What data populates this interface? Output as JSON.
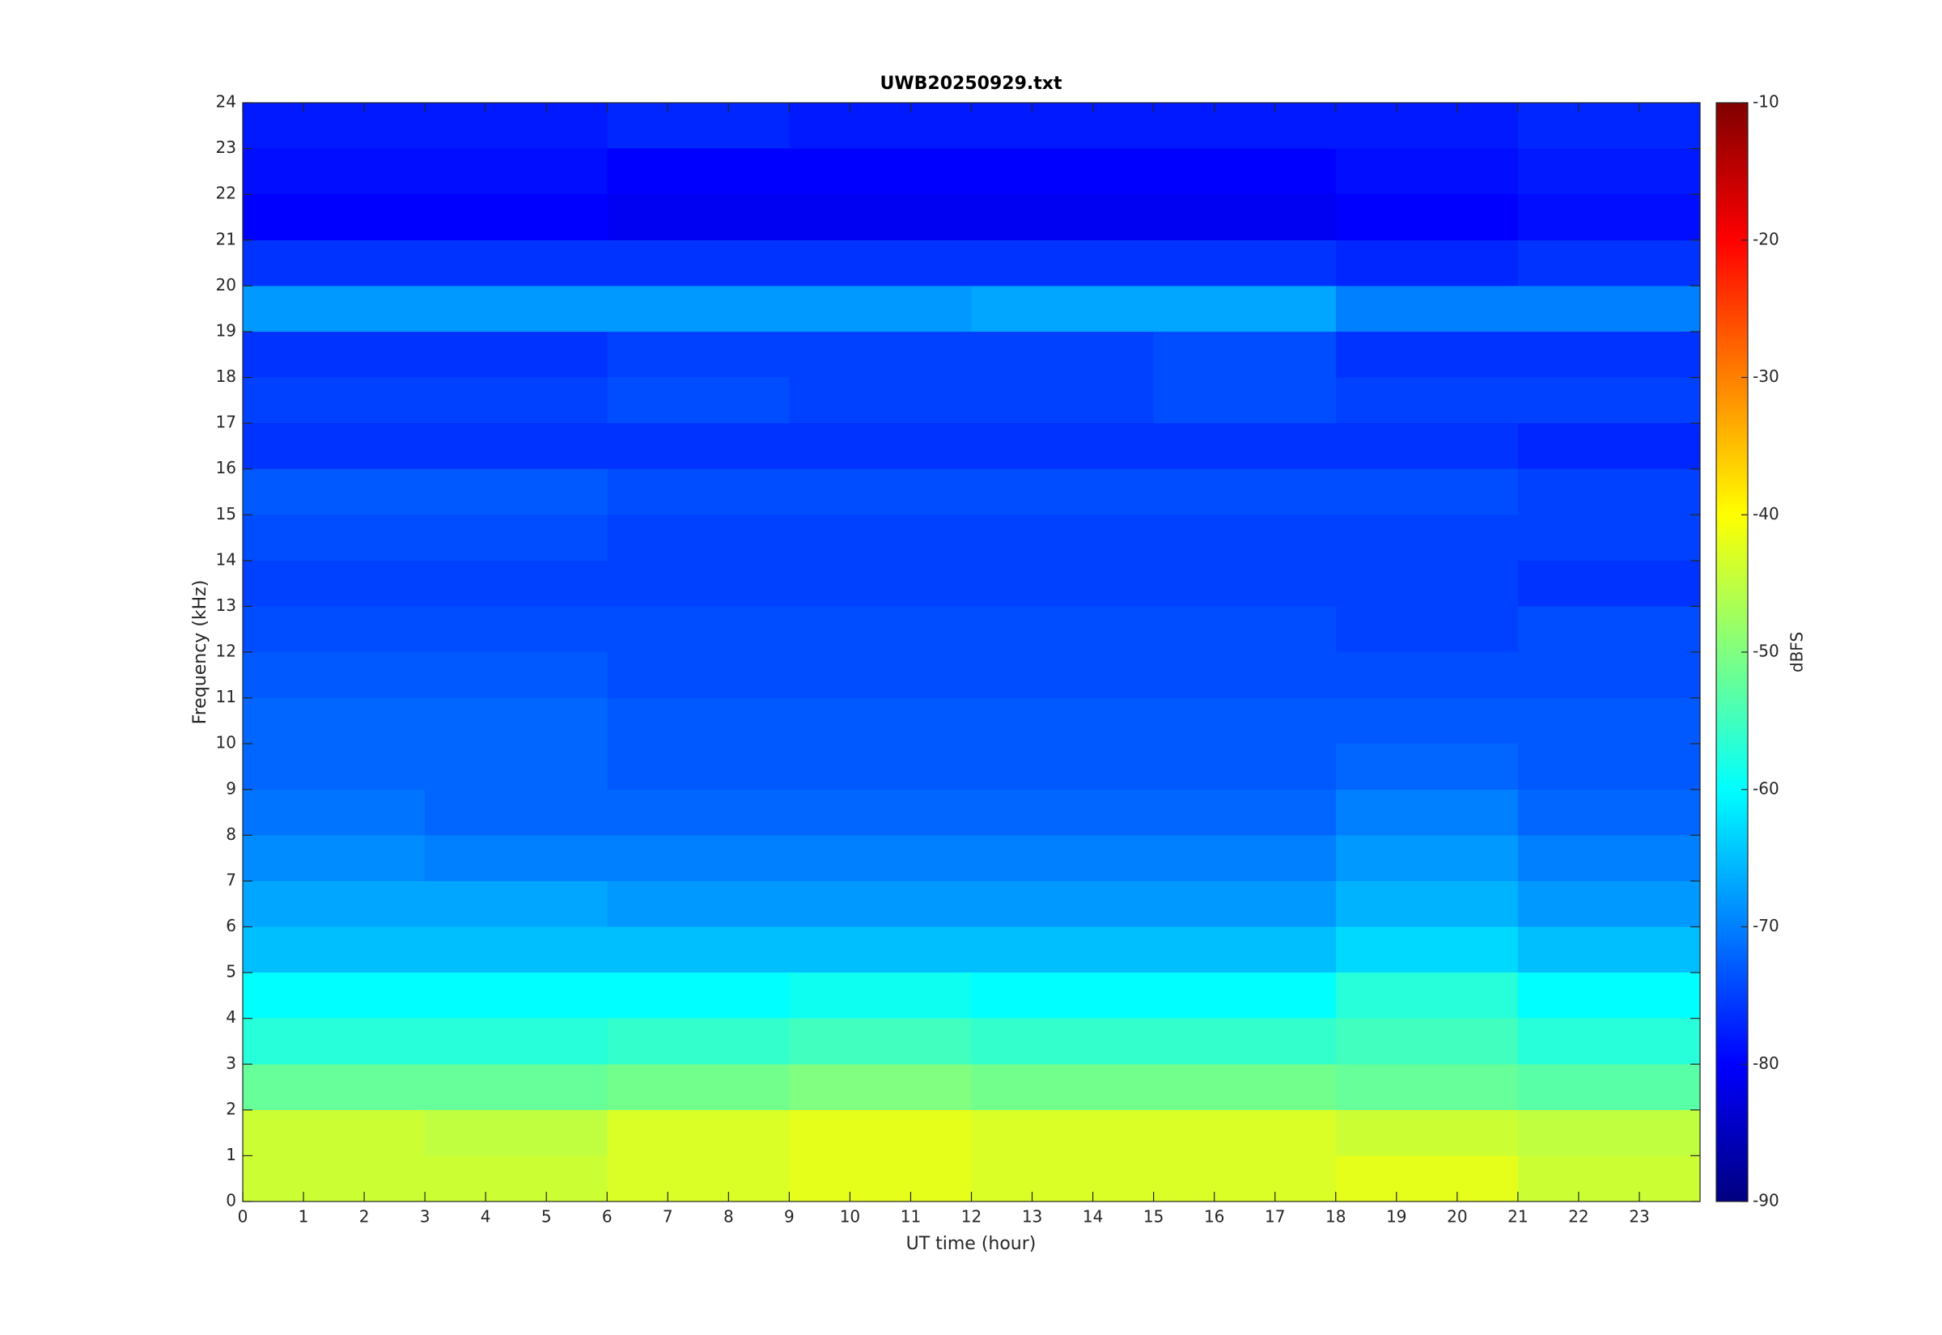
{
  "chart_data": {
    "type": "heatmap",
    "title": "UWB20250929.txt",
    "xlabel": "UT time (hour)",
    "ylabel": "Frequency (kHz)",
    "colorbar_label": "dBFS",
    "colormap": "jet",
    "clim": [
      -90,
      -10
    ],
    "cticks": [
      -90,
      -80,
      -70,
      -60,
      -50,
      -40,
      -30,
      -20,
      -10
    ],
    "xlim": [
      0,
      24
    ],
    "xticks": [
      0,
      1,
      2,
      3,
      4,
      5,
      6,
      7,
      8,
      9,
      10,
      11,
      12,
      13,
      14,
      15,
      16,
      17,
      18,
      19,
      20,
      21,
      22,
      23
    ],
    "ylim": [
      0,
      24
    ],
    "yticks": [
      0,
      1,
      2,
      3,
      4,
      5,
      6,
      7,
      8,
      9,
      10,
      11,
      12,
      13,
      14,
      15,
      16,
      17,
      18,
      19,
      20,
      21,
      22,
      23,
      24
    ],
    "x_bins": [
      0,
      3,
      6,
      9,
      12,
      15,
      18,
      21,
      24
    ],
    "y_bins": [
      0,
      1,
      2,
      3,
      4,
      5,
      6,
      7,
      8,
      9,
      10,
      11,
      12,
      13,
      14,
      15,
      16,
      17,
      18,
      19,
      20,
      21,
      22,
      23,
      24
    ],
    "z": [
      [
        -44,
        -44,
        -43,
        -42,
        -43,
        -43,
        -42,
        -44
      ],
      [
        -44,
        -45,
        -43,
        -42,
        -43,
        -43,
        -44,
        -45
      ],
      [
        -52,
        -52,
        -51,
        -50,
        -51,
        -51,
        -52,
        -53
      ],
      [
        -57,
        -57,
        -56,
        -55,
        -56,
        -56,
        -55,
        -57
      ],
      [
        -60,
        -60,
        -60,
        -59,
        -60,
        -60,
        -57,
        -60
      ],
      [
        -65,
        -65,
        -65,
        -65,
        -65,
        -65,
        -63,
        -65
      ],
      [
        -67,
        -67,
        -68,
        -68,
        -68,
        -68,
        -66,
        -68
      ],
      [
        -69,
        -70,
        -70,
        -70,
        -70,
        -70,
        -68,
        -70
      ],
      [
        -71,
        -72,
        -72,
        -72,
        -72,
        -72,
        -70,
        -72
      ],
      [
        -72,
        -72,
        -73,
        -73,
        -73,
        -73,
        -72,
        -73
      ],
      [
        -72,
        -72,
        -73,
        -73,
        -73,
        -73,
        -73,
        -73
      ],
      [
        -73,
        -73,
        -74,
        -74,
        -74,
        -74,
        -74,
        -74
      ],
      [
        -74,
        -74,
        -74,
        -74,
        -74,
        -74,
        -75,
        -74
      ],
      [
        -75,
        -75,
        -75,
        -75,
        -75,
        -75,
        -75,
        -76
      ],
      [
        -74,
        -74,
        -75,
        -75,
        -75,
        -75,
        -75,
        -75
      ],
      [
        -73,
        -73,
        -74,
        -74,
        -74,
        -74,
        -74,
        -75
      ],
      [
        -76,
        -76,
        -76,
        -76,
        -76,
        -76,
        -76,
        -77
      ],
      [
        -75,
        -75,
        -74,
        -75,
        -75,
        -74,
        -75,
        -75
      ],
      [
        -76,
        -76,
        -75,
        -75,
        -75,
        -74,
        -76,
        -76
      ],
      [
        -68,
        -68,
        -68,
        -68,
        -67,
        -67,
        -70,
        -70
      ],
      [
        -76,
        -76,
        -76,
        -76,
        -76,
        -76,
        -77,
        -76
      ],
      [
        -80,
        -80,
        -81,
        -81,
        -81,
        -81,
        -80,
        -79
      ],
      [
        -79,
        -79,
        -80,
        -80,
        -80,
        -80,
        -79,
        -78
      ],
      [
        -78,
        -78,
        -77,
        -78,
        -78,
        -78,
        -78,
        -77
      ]
    ]
  }
}
